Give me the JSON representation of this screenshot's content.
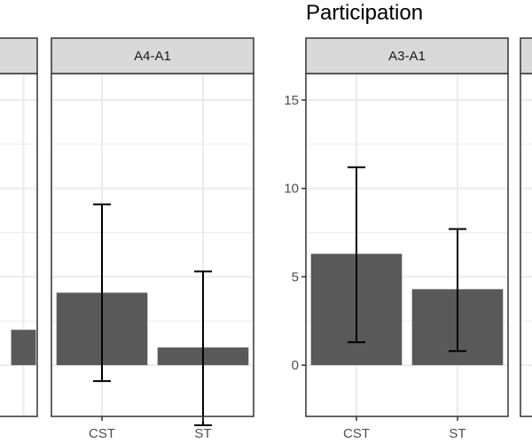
{
  "chart_data": {
    "type": "bar",
    "title": "Participation",
    "xlabel": "",
    "ylabel": "",
    "ylim": [
      -2.9,
      16.5
    ],
    "yticks": [
      0,
      5,
      10,
      15
    ],
    "categories": [
      "CST",
      "ST"
    ],
    "colors": {
      "bar": "#595959",
      "strip_fill": "#d9d9d9",
      "grid": "#ebebeb",
      "border": "#333333",
      "error": "#000000"
    },
    "panels": [
      {
        "label": "",
        "partial": "left",
        "values": [
          null,
          2.0
        ],
        "error_low": [
          null,
          null
        ],
        "error_high": [
          null,
          null
        ],
        "show_x_labels": false
      },
      {
        "label": "A4-A1",
        "values": [
          4.1,
          1.0
        ],
        "error_low": [
          -0.9,
          -3.4
        ],
        "error_high": [
          9.1,
          5.3
        ],
        "show_x_labels": true
      },
      {
        "label": "A3-A1",
        "values": [
          6.3,
          4.3
        ],
        "error_low": [
          1.3,
          0.8
        ],
        "error_high": [
          11.2,
          7.7
        ],
        "show_x_labels": true,
        "show_y_axis": true
      },
      {
        "label": "",
        "partial": "right",
        "values": [
          null,
          null
        ],
        "error_low": [
          null,
          null
        ],
        "error_high": [
          null,
          null
        ],
        "show_x_labels": false
      }
    ]
  }
}
